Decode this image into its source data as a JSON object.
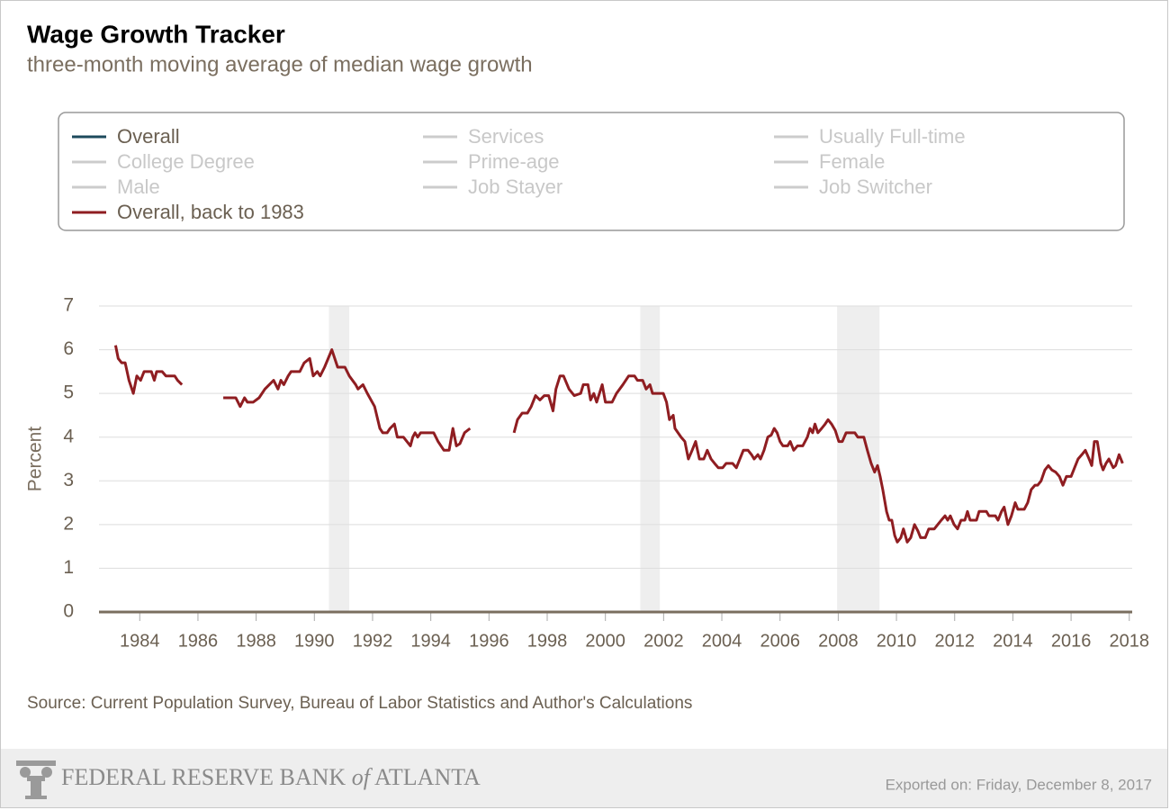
{
  "chart_data": {
    "type": "line",
    "title": "Wage Growth Tracker",
    "subtitle": "three-month moving average of median wage growth",
    "y_label": "Percent",
    "source": "Source: Current Population Survey, Bureau of Labor Statistics and Author's Calculations",
    "legend": [
      {
        "name": "Overall",
        "color": "#1d4a5c"
      },
      {
        "name": "Services",
        "color": "#cccccc"
      },
      {
        "name": "Usually Full-time",
        "color": "#cccccc"
      },
      {
        "name": "College Degree",
        "color": "#cccccc"
      },
      {
        "name": "Prime-age",
        "color": "#cccccc"
      },
      {
        "name": "Female",
        "color": "#cccccc"
      },
      {
        "name": "Male",
        "color": "#cccccc"
      },
      {
        "name": "Job Stayer",
        "color": "#cccccc"
      },
      {
        "name": "Job Switcher",
        "color": "#cccccc"
      }
    ],
    "recessions": [
      [
        1990.5,
        1991.2
      ],
      [
        2001.2,
        2001.87
      ],
      [
        2007.96,
        2009.42
      ]
    ],
    "xlim": [
      1982.6,
      2018.1
    ],
    "xticks": [
      1984,
      1986,
      1988,
      1990,
      1992,
      1994,
      1996,
      1998,
      2000,
      2002,
      2004,
      2006,
      2008,
      2010,
      2012,
      2014,
      2016,
      2018
    ],
    "ylim": [
      0,
      7
    ],
    "yticks": [
      0,
      1,
      2,
      3,
      4,
      5,
      6,
      7
    ],
    "grid": true,
    "x": [
      1983.17,
      1983.26,
      1983.38,
      1983.5,
      1983.63,
      1983.78,
      1983.9,
      1984.03,
      1984.15,
      1984.4,
      1984.5,
      1984.58,
      1984.77,
      1984.9,
      1985.2,
      1985.3,
      1985.45,
      1986.1,
      1986.87,
      1987.0,
      1987.3,
      1987.45,
      1987.6,
      1987.7,
      1987.9,
      1988.1,
      1988.3,
      1988.45,
      1988.6,
      1988.75,
      1988.85,
      1988.95,
      1989.1,
      1989.2,
      1989.5,
      1989.65,
      1989.84,
      1989.96,
      1990.1,
      1990.2,
      1990.35,
      1990.6,
      1990.8,
      1991.05,
      1991.2,
      1991.42,
      1991.5,
      1991.67,
      1991.82,
      1992.07,
      1992.25,
      1992.35,
      1992.5,
      1992.6,
      1992.75,
      1992.85,
      1993.06,
      1993.3,
      1993.38,
      1993.46,
      1993.55,
      1993.65,
      1994.1,
      1994.25,
      1994.45,
      1994.63,
      1994.76,
      1994.88,
      1995.0,
      1995.16,
      1995.35,
      1996.1,
      1996.86,
      1996.98,
      1997.14,
      1997.32,
      1997.45,
      1997.6,
      1997.75,
      1997.9,
      1998.05,
      1998.2,
      1998.3,
      1998.44,
      1998.56,
      1998.75,
      1998.93,
      1999.15,
      1999.24,
      1999.4,
      1999.49,
      1999.6,
      1999.7,
      1999.89,
      2000.0,
      2000.23,
      2000.38,
      2000.6,
      2000.8,
      2001.0,
      2001.1,
      2001.28,
      2001.4,
      2001.53,
      2001.62,
      2001.99,
      2002.1,
      2002.2,
      2002.33,
      2002.39,
      2002.6,
      2002.73,
      2002.85,
      2002.98,
      2003.1,
      2003.23,
      2003.38,
      2003.5,
      2003.63,
      2003.75,
      2003.88,
      2004.03,
      2004.15,
      2004.37,
      2004.5,
      2004.62,
      2004.74,
      2004.9,
      2005.02,
      2005.11,
      2005.24,
      2005.33,
      2005.45,
      2005.58,
      2005.7,
      2005.8,
      2005.9,
      2006.0,
      2006.1,
      2006.26,
      2006.35,
      2006.47,
      2006.6,
      2006.78,
      2006.94,
      2007.03,
      2007.12,
      2007.2,
      2007.3,
      2007.43,
      2007.55,
      2007.65,
      2007.77,
      2007.9,
      2008.02,
      2008.14,
      2008.27,
      2008.4,
      2008.57,
      2008.67,
      2008.88,
      2009.0,
      2009.13,
      2009.25,
      2009.35,
      2009.44,
      2009.53,
      2009.66,
      2009.75,
      2009.84,
      2009.94,
      2010.03,
      2010.15,
      2010.24,
      2010.37,
      2010.49,
      2010.62,
      2010.74,
      2010.83,
      2010.99,
      2011.11,
      2011.3,
      2011.42,
      2011.54,
      2011.67,
      2011.76,
      2011.85,
      2011.98,
      2012.1,
      2012.22,
      2012.35,
      2012.44,
      2012.53,
      2012.75,
      2012.84,
      2013.09,
      2013.18,
      2013.4,
      2013.49,
      2013.61,
      2013.7,
      2013.83,
      2013.95,
      2014.08,
      2014.17,
      2014.39,
      2014.51,
      2014.63,
      2014.76,
      2014.85,
      2014.97,
      2015.1,
      2015.22,
      2015.34,
      2015.47,
      2015.6,
      2015.72,
      2015.84,
      2016.0,
      2016.12,
      2016.24,
      2016.37,
      2016.49,
      2016.62,
      2016.71,
      2016.8,
      2016.9,
      2017.02,
      2017.1,
      2017.2,
      2017.3,
      2017.45,
      2017.53,
      2017.65,
      2017.77
    ],
    "series": [
      {
        "name": "Overall, back to 1983",
        "color": "#8f1d21",
        "values": [
          6.1,
          5.8,
          5.7,
          5.7,
          5.3,
          5.0,
          5.4,
          5.3,
          5.5,
          5.5,
          5.3,
          5.5,
          5.5,
          5.4,
          5.4,
          5.3,
          5.2,
          null,
          4.9,
          4.9,
          4.9,
          4.7,
          4.9,
          4.8,
          4.8,
          4.9,
          5.1,
          5.2,
          5.3,
          5.1,
          5.3,
          5.2,
          5.4,
          5.5,
          5.5,
          5.7,
          5.8,
          5.4,
          5.5,
          5.4,
          5.6,
          6.0,
          5.6,
          5.6,
          5.4,
          5.2,
          5.1,
          5.2,
          5.0,
          4.7,
          4.2,
          4.1,
          4.1,
          4.2,
          4.3,
          4.0,
          4.0,
          3.8,
          4.0,
          4.1,
          4.0,
          4.1,
          4.1,
          3.9,
          3.7,
          3.7,
          4.2,
          3.8,
          3.85,
          4.1,
          4.2,
          null,
          4.1,
          4.4,
          4.55,
          4.55,
          4.7,
          4.95,
          4.85,
          4.95,
          4.95,
          4.6,
          5.1,
          5.4,
          5.4,
          5.1,
          4.95,
          5.0,
          5.2,
          5.2,
          4.85,
          5.0,
          4.8,
          5.2,
          4.8,
          4.8,
          5.0,
          5.2,
          5.4,
          5.4,
          5.3,
          5.3,
          5.1,
          5.2,
          5.0,
          5.0,
          4.8,
          4.4,
          4.5,
          4.2,
          4.0,
          3.9,
          3.5,
          3.7,
          3.9,
          3.5,
          3.5,
          3.7,
          3.5,
          3.4,
          3.3,
          3.3,
          3.4,
          3.4,
          3.3,
          3.5,
          3.7,
          3.7,
          3.6,
          3.5,
          3.6,
          3.5,
          3.7,
          4.0,
          4.05,
          4.2,
          4.1,
          3.9,
          3.8,
          3.8,
          3.9,
          3.7,
          3.8,
          3.8,
          4.0,
          4.2,
          4.1,
          4.3,
          4.1,
          4.2,
          4.3,
          4.4,
          4.3,
          4.15,
          3.9,
          3.9,
          4.1,
          4.1,
          4.1,
          4.0,
          4.0,
          3.7,
          3.4,
          3.2,
          3.35,
          3.1,
          2.8,
          2.3,
          2.1,
          2.1,
          1.75,
          1.6,
          1.7,
          1.9,
          1.6,
          1.7,
          2.0,
          1.85,
          1.7,
          1.7,
          1.9,
          1.9,
          2.0,
          2.1,
          2.2,
          2.1,
          2.2,
          2.0,
          1.9,
          2.1,
          2.1,
          2.3,
          2.1,
          2.1,
          2.3,
          2.3,
          2.2,
          2.2,
          2.1,
          2.3,
          2.4,
          2.0,
          2.2,
          2.5,
          2.35,
          2.35,
          2.5,
          2.8,
          2.9,
          2.9,
          3.0,
          3.25,
          3.35,
          3.25,
          3.2,
          3.1,
          2.9,
          3.1,
          3.1,
          3.3,
          3.5,
          3.6,
          3.7,
          3.5,
          3.35,
          3.9,
          3.9,
          3.4,
          3.25,
          3.4,
          3.5,
          3.3,
          3.35,
          3.6,
          3.4
        ]
      }
    ]
  },
  "footer": {
    "bank": "FEDERAL RESERVE BANK",
    "of": "of",
    "city": "ATLANTA",
    "exported": "Exported on: Friday, December 8, 2017"
  }
}
